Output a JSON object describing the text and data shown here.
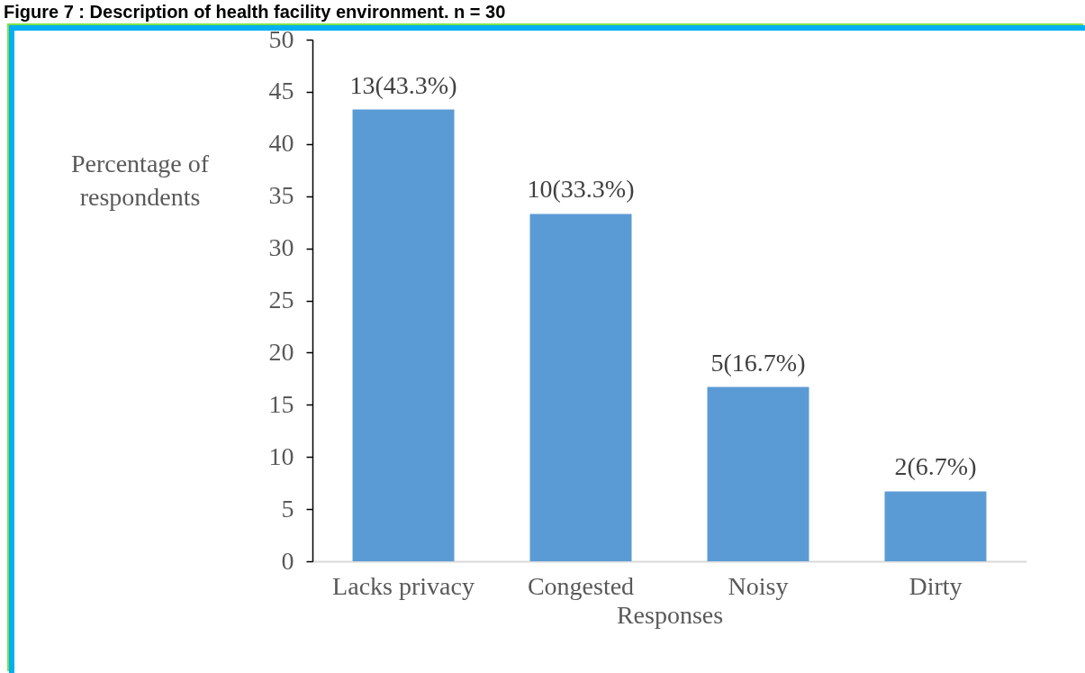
{
  "chart_data": {
    "type": "bar",
    "title": "Figure 7 : Description of health facility environment. n = 30",
    "xlabel": "Responses",
    "ylabel": "Percentage of respondents",
    "categories": [
      "Lacks privacy",
      "Congested",
      "Noisy",
      "Dirty"
    ],
    "values": [
      43.3,
      33.3,
      16.7,
      6.7
    ],
    "value_labels": [
      "13(43.3%)",
      "10(33.3%)",
      "5(16.7%)",
      "2(6.7%)"
    ],
    "color": "#5b9bd5",
    "ylim": [
      0,
      50
    ],
    "yticks": [
      0,
      5,
      10,
      15,
      20,
      25,
      30,
      35,
      40,
      45,
      50
    ]
  }
}
